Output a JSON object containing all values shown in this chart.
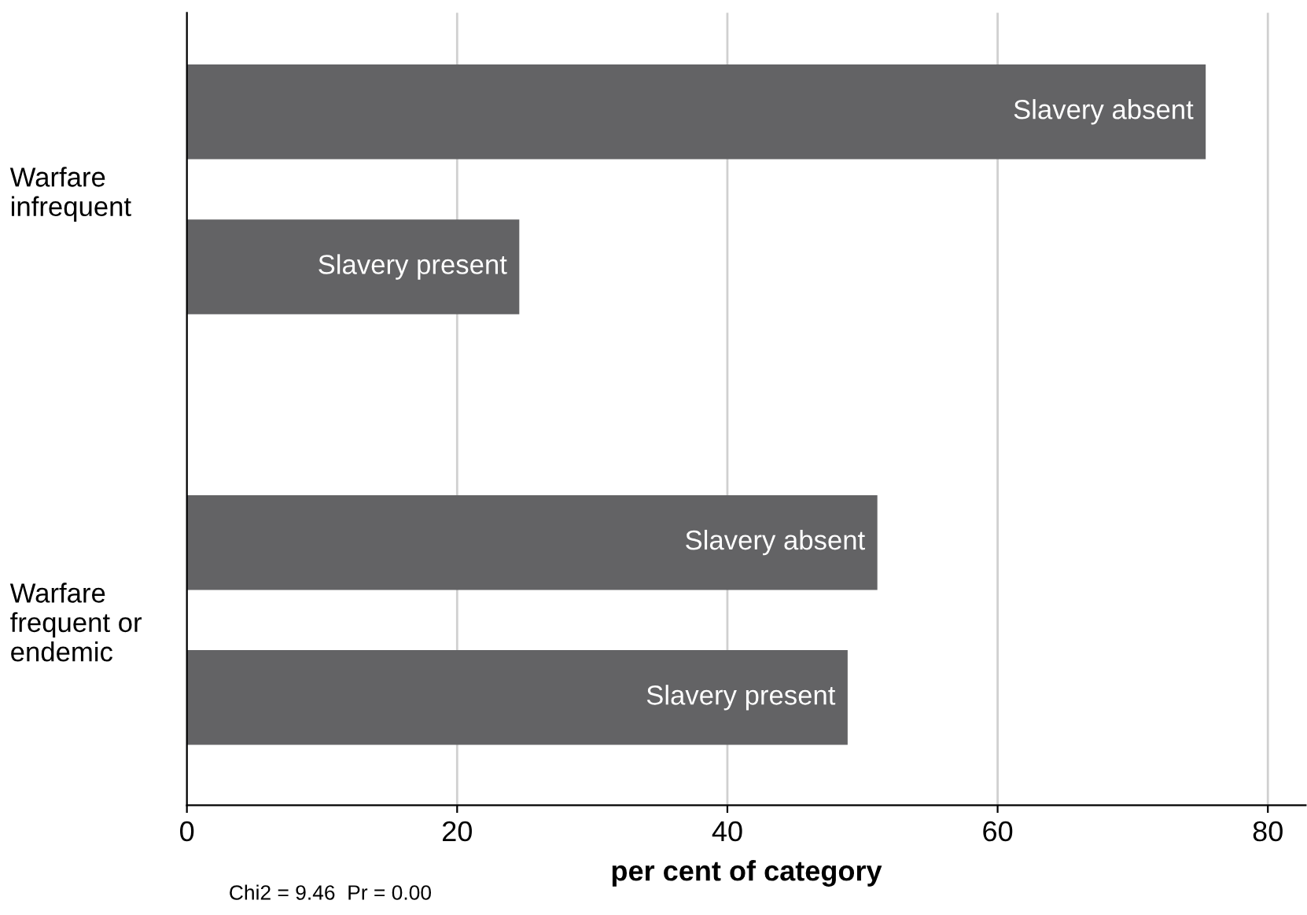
{
  "chart_data": {
    "type": "bar",
    "orientation": "horizontal",
    "xlabel": "per cent of category",
    "categories": [
      "Warfare\ninfrequent",
      "Warfare\nfrequent or\nendemic"
    ],
    "series": [
      {
        "name": "Slavery absent",
        "color": "#636365",
        "values": [
          75.4,
          51.1
        ]
      },
      {
        "name": "Slavery present",
        "color": "#636365",
        "values": [
          24.6,
          48.9
        ]
      }
    ],
    "xlim": [
      0,
      82.8
    ],
    "xticks": [
      0,
      20,
      40,
      60,
      80
    ],
    "grid": "x",
    "legend": false,
    "annotations": [
      "Chi2 = 9.46  Pr = 0.00"
    ]
  }
}
